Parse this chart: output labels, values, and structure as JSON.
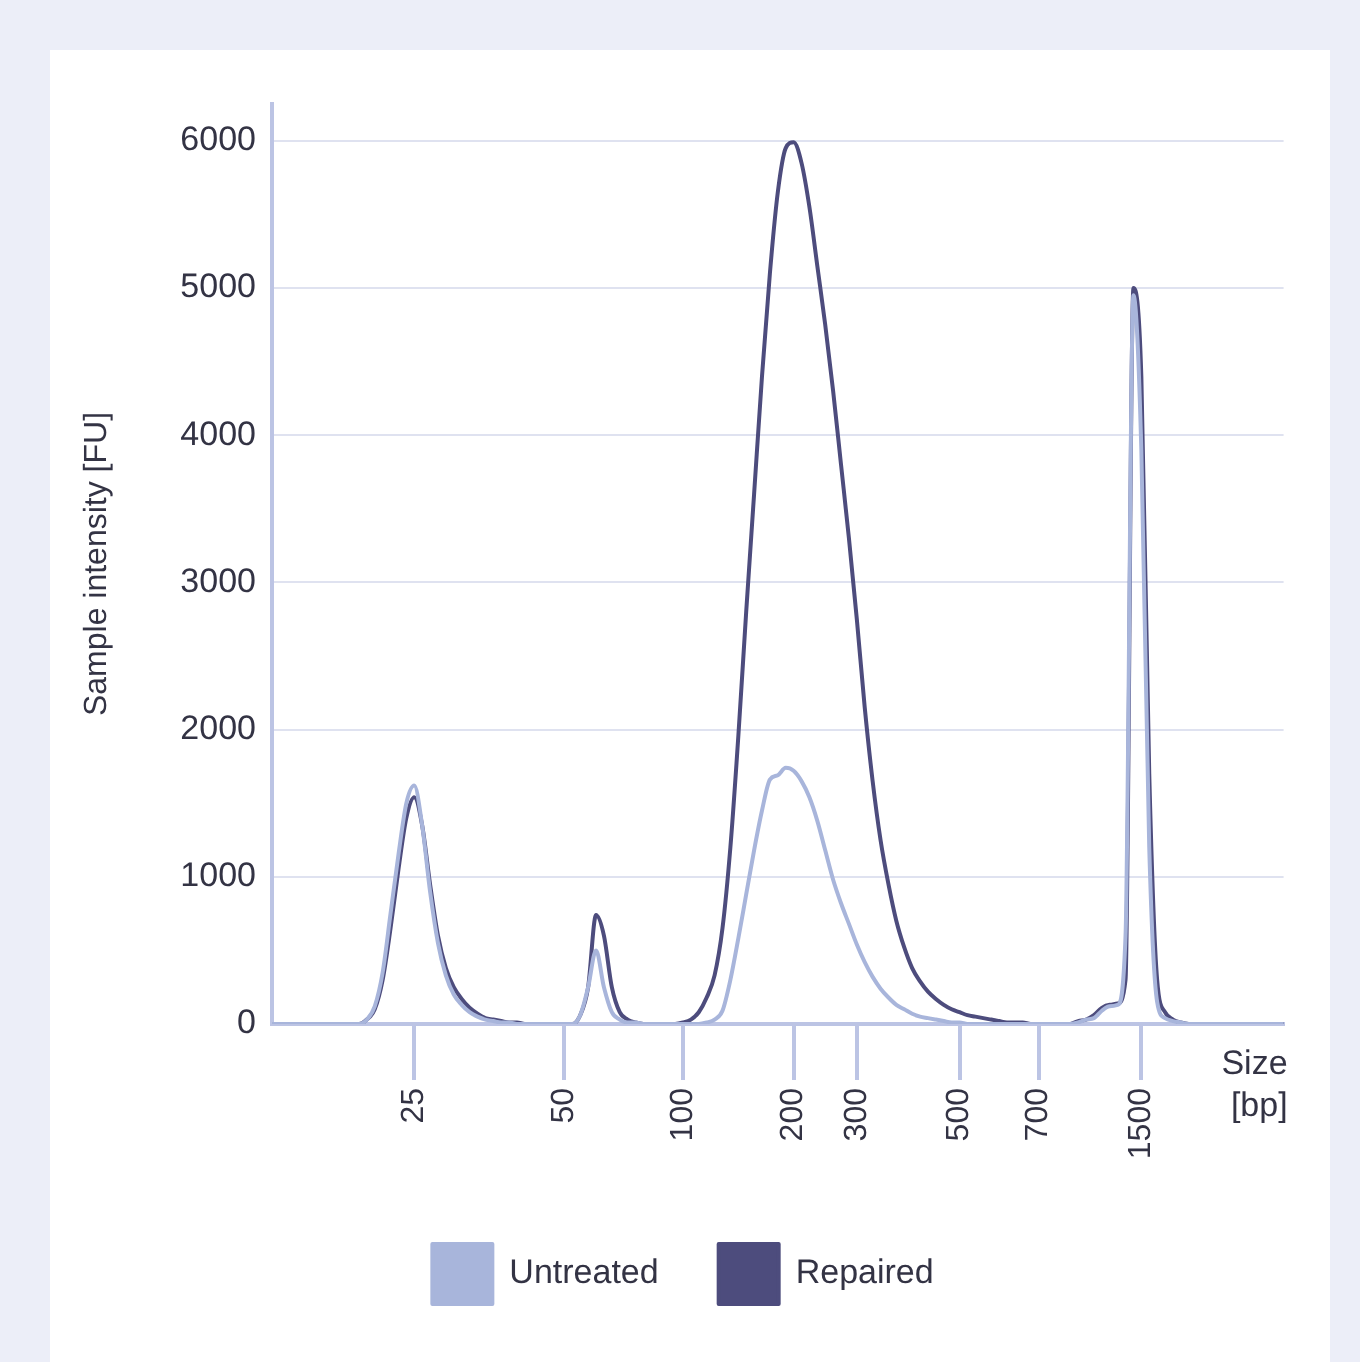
{
  "chart_data": {
    "type": "line",
    "xlabel": "Size [bp]",
    "ylabel": "Sample intensity [FU]",
    "categories": [
      null,
      null,
      null,
      null,
      null,
      null,
      null,
      null,
      null,
      null,
      null,
      null,
      null,
      null,
      null,
      null,
      null,
      null,
      "25",
      null,
      null,
      null,
      null,
      null,
      null,
      null,
      null,
      null,
      null,
      null,
      null,
      null,
      null,
      null,
      null,
      null,
      null,
      "50",
      null,
      null,
      null,
      null,
      null,
      null,
      null,
      null,
      null,
      null,
      null,
      null,
      null,
      null,
      "100",
      null,
      null,
      null,
      null,
      null,
      null,
      null,
      null,
      null,
      null,
      null,
      null,
      null,
      "200",
      null,
      null,
      null,
      null,
      null,
      null,
      null,
      "300",
      null,
      null,
      null,
      null,
      null,
      null,
      null,
      null,
      null,
      null,
      null,
      null,
      "500",
      null,
      null,
      null,
      null,
      null,
      null,
      null,
      null,
      null,
      "700",
      null,
      null,
      null,
      null,
      null,
      null,
      null,
      null,
      null,
      null,
      null,
      null,
      "1500",
      null,
      null,
      null,
      null,
      null,
      null,
      null,
      null,
      null,
      null,
      null,
      null,
      null,
      null,
      null,
      null,
      null,
      null
    ],
    "series": [
      {
        "name": "Untreated",
        "color": "#a8b5db",
        "values": [
          0,
          0,
          0,
          0,
          0,
          0,
          0,
          0,
          0,
          0,
          0,
          0,
          30,
          120,
          350,
          750,
          1150,
          1500,
          1620,
          1350,
          900,
          550,
          330,
          200,
          130,
          80,
          50,
          30,
          20,
          10,
          10,
          0,
          0,
          0,
          0,
          0,
          0,
          0,
          0,
          60,
          250,
          500,
          250,
          80,
          30,
          10,
          10,
          0,
          0,
          0,
          0,
          0,
          0,
          0,
          0,
          10,
          30,
          90,
          300,
          580,
          880,
          1180,
          1450,
          1660,
          1690,
          1740,
          1720,
          1650,
          1540,
          1380,
          1180,
          980,
          820,
          680,
          540,
          420,
          320,
          240,
          180,
          130,
          100,
          70,
          50,
          40,
          30,
          20,
          10,
          10,
          0,
          0,
          0,
          0,
          0,
          0,
          0,
          0,
          0,
          0,
          0,
          0,
          0,
          0,
          10,
          30,
          40,
          90,
          120,
          130,
          600,
          4950,
          3900,
          1200,
          150,
          40,
          20,
          10,
          0,
          0,
          0,
          0,
          0,
          0,
          0,
          0,
          0,
          0,
          0,
          0,
          0
        ]
      },
      {
        "name": "Repaired",
        "color": "#4d4c7d",
        "values": [
          0,
          0,
          0,
          0,
          0,
          0,
          0,
          0,
          0,
          0,
          0,
          0,
          30,
          100,
          300,
          650,
          1050,
          1400,
          1540,
          1350,
          950,
          600,
          380,
          250,
          170,
          110,
          70,
          40,
          30,
          20,
          10,
          10,
          0,
          0,
          0,
          0,
          0,
          0,
          0,
          60,
          250,
          740,
          600,
          250,
          80,
          30,
          10,
          0,
          0,
          0,
          0,
          0,
          10,
          30,
          80,
          180,
          330,
          650,
          1200,
          1950,
          2800,
          3600,
          4400,
          5100,
          5650,
          5950,
          5990,
          5850,
          5550,
          5150,
          4750,
          4300,
          3800,
          3300,
          2750,
          2150,
          1650,
          1250,
          950,
          700,
          520,
          380,
          290,
          220,
          170,
          130,
          100,
          80,
          60,
          50,
          40,
          30,
          20,
          10,
          10,
          10,
          0,
          0,
          0,
          0,
          0,
          0,
          20,
          30,
          60,
          110,
          130,
          140,
          300,
          5000,
          4400,
          1700,
          300,
          80,
          30,
          10,
          0,
          0,
          0,
          0,
          0,
          0,
          0,
          0,
          0,
          0,
          0,
          0,
          0
        ]
      }
    ],
    "ylim": [
      0,
      6250
    ],
    "yticks": [
      0,
      1000,
      2000,
      3000,
      4000,
      5000,
      6000
    ],
    "grid": "y",
    "legend": "bottom"
  }
}
